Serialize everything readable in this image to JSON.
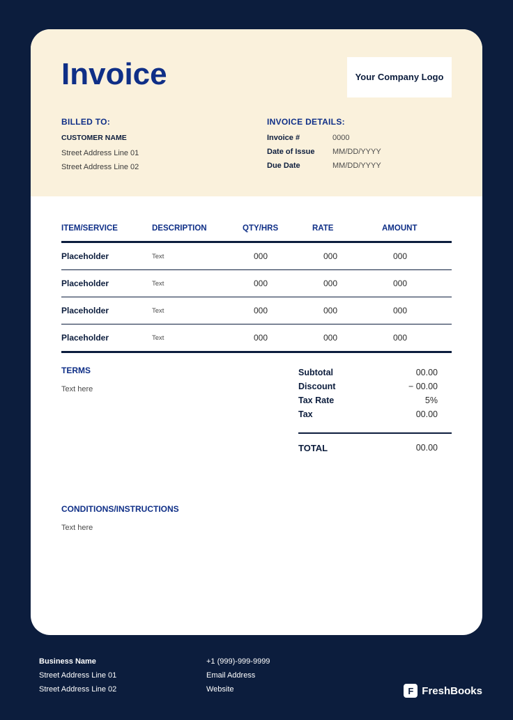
{
  "colors": {
    "page_bg": "#0c1d3d",
    "card_bg": "#ffffff",
    "header_bg": "#faf1dc",
    "primary": "#0f2f87",
    "text_dark": "#0c1d3d",
    "text_muted": "#4a4a4a"
  },
  "header": {
    "title": "Invoice",
    "logo_text": "Your Company Logo"
  },
  "billed": {
    "heading": "BILLED TO:",
    "customer": "CUSTOMER NAME",
    "addr1": "Street Address Line 01",
    "addr2": "Street Address Line 02"
  },
  "details": {
    "heading": "INVOICE DETAILS:",
    "num_label": "Invoice #",
    "num_value": "0000",
    "date_label": "Date of Issue",
    "date_value": "MM/DD/YYYY",
    "due_label": "Due Date",
    "due_value": "MM/DD/YYYY"
  },
  "table": {
    "headers": {
      "item": "ITEM/SERVICE",
      "desc": "DESCRIPTION",
      "qty": "QTY/HRS",
      "rate": "RATE",
      "amount": "AMOUNT"
    },
    "rows": [
      {
        "item": "Placeholder",
        "desc": "Text",
        "qty": "000",
        "rate": "000",
        "amount": "000"
      },
      {
        "item": "Placeholder",
        "desc": "Text",
        "qty": "000",
        "rate": "000",
        "amount": "000"
      },
      {
        "item": "Placeholder",
        "desc": "Text",
        "qty": "000",
        "rate": "000",
        "amount": "000"
      },
      {
        "item": "Placeholder",
        "desc": "Text",
        "qty": "000",
        "rate": "000",
        "amount": "000"
      }
    ]
  },
  "terms": {
    "heading": "TERMS",
    "text": "Text here"
  },
  "totals": {
    "subtotal_label": "Subtotal",
    "subtotal_value": "00.00",
    "discount_label": "Discount",
    "discount_value": "− 00.00",
    "taxrate_label": "Tax Rate",
    "taxrate_value": "5%",
    "tax_label": "Tax",
    "tax_value": "00.00",
    "total_label": "TOTAL",
    "total_value": "00.00"
  },
  "conditions": {
    "heading": "CONDITIONS/INSTRUCTIONS",
    "text": "Text here"
  },
  "footer": {
    "business": "Business Name",
    "addr1": "Street Address Line 01",
    "addr2": "Street Address Line 02",
    "phone": "+1 (999)-999-9999",
    "email": "Email Address",
    "website": "Website",
    "brand": "FreshBooks",
    "brand_badge": "F"
  }
}
